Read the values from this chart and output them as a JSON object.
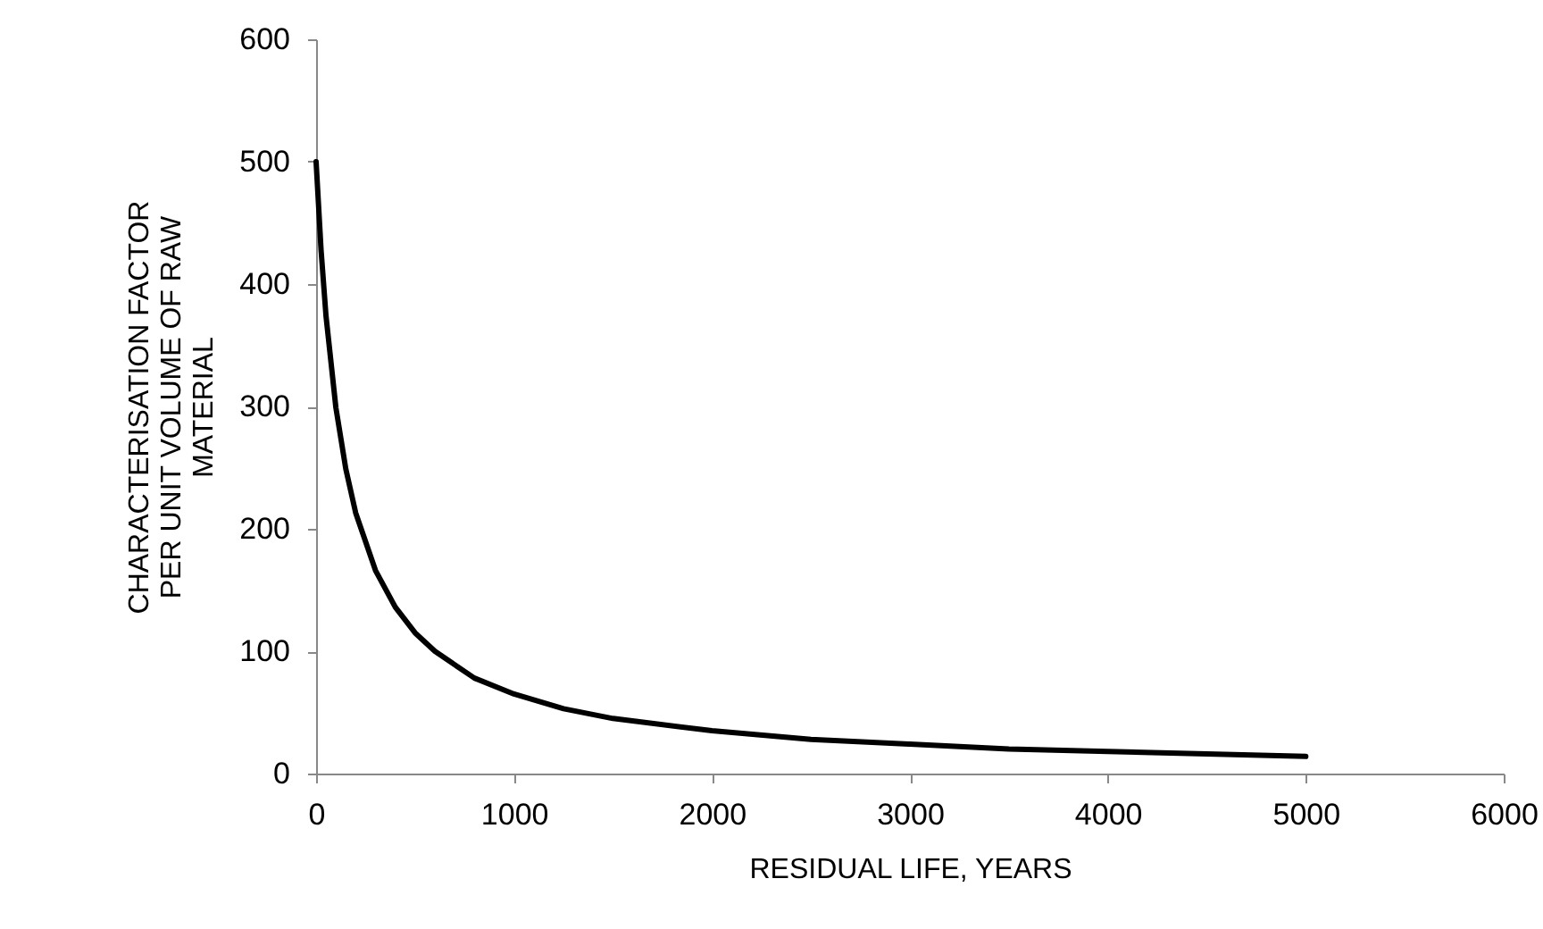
{
  "chart_data": {
    "type": "line",
    "xlabel": "RESIDUAL LIFE, YEARS",
    "ylabel": "CHARACTERISATION FACTOR PER UNIT VOLUME OF RAW MATERIAL",
    "x": [
      0,
      25,
      50,
      100,
      150,
      200,
      300,
      400,
      500,
      600,
      800,
      1000,
      1250,
      1500,
      2000,
      2500,
      3000,
      3500,
      4000,
      4500,
      5000
    ],
    "series": [
      {
        "color": "#000000",
        "values": [
          500,
          428,
          374,
          299,
          249,
          213,
          166,
          136,
          115,
          100,
          78,
          65,
          53,
          45,
          35,
          28,
          24,
          20,
          18,
          16,
          14
        ]
      }
    ],
    "xlim": [
      0,
      6000
    ],
    "xticks": [
      0,
      1000,
      2000,
      3000,
      4000,
      5000,
      6000
    ],
    "ylim": [
      0,
      600
    ],
    "yticks": [
      0,
      100,
      200,
      300,
      400,
      500,
      600
    ],
    "grid": false,
    "marker": "none",
    "line_style": "solid"
  }
}
